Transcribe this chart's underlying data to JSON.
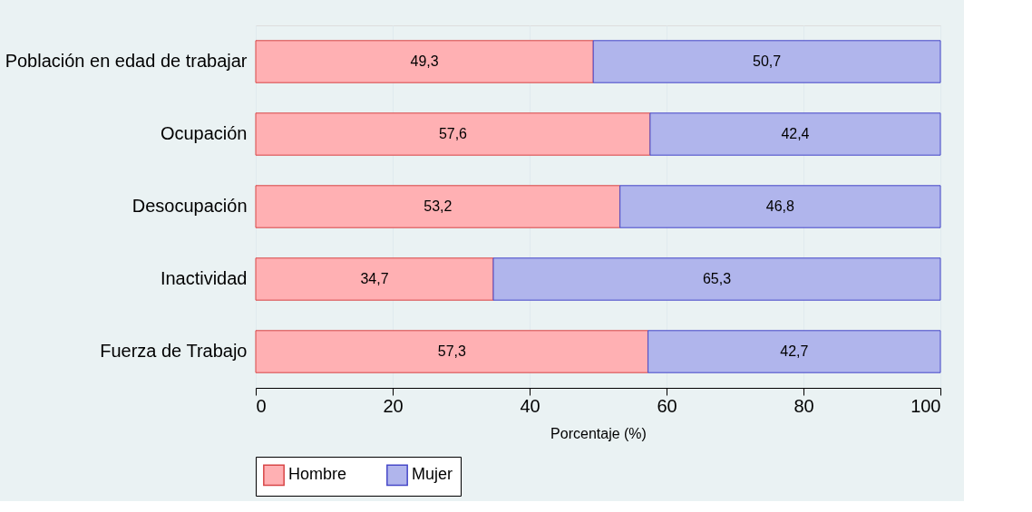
{
  "chart_data": {
    "type": "bar",
    "orientation": "horizontal",
    "stacked": true,
    "categories": [
      "Población en edad de trabajar",
      "Ocupación",
      "Desocupación",
      "Inactividad",
      "Fuerza de Trabajo"
    ],
    "series": [
      {
        "name": "Hombre",
        "color": "#ffb0b3",
        "values": [
          49.3,
          57.6,
          53.2,
          34.7,
          57.3
        ],
        "value_labels": [
          "49,3",
          "57,6",
          "53,2",
          "34,7",
          "57,3"
        ]
      },
      {
        "name": "Mujer",
        "color": "#b0b5ec",
        "values": [
          50.7,
          42.4,
          46.8,
          65.3,
          42.7
        ],
        "value_labels": [
          "50,7",
          "42,4",
          "46,8",
          "65,3",
          "42,7"
        ]
      }
    ],
    "xlabel": "Porcentaje (%)",
    "xlim": [
      0,
      100
    ],
    "xticks": [
      0,
      20,
      40,
      60,
      80,
      100
    ],
    "grid": "x",
    "legend": "bottom"
  }
}
